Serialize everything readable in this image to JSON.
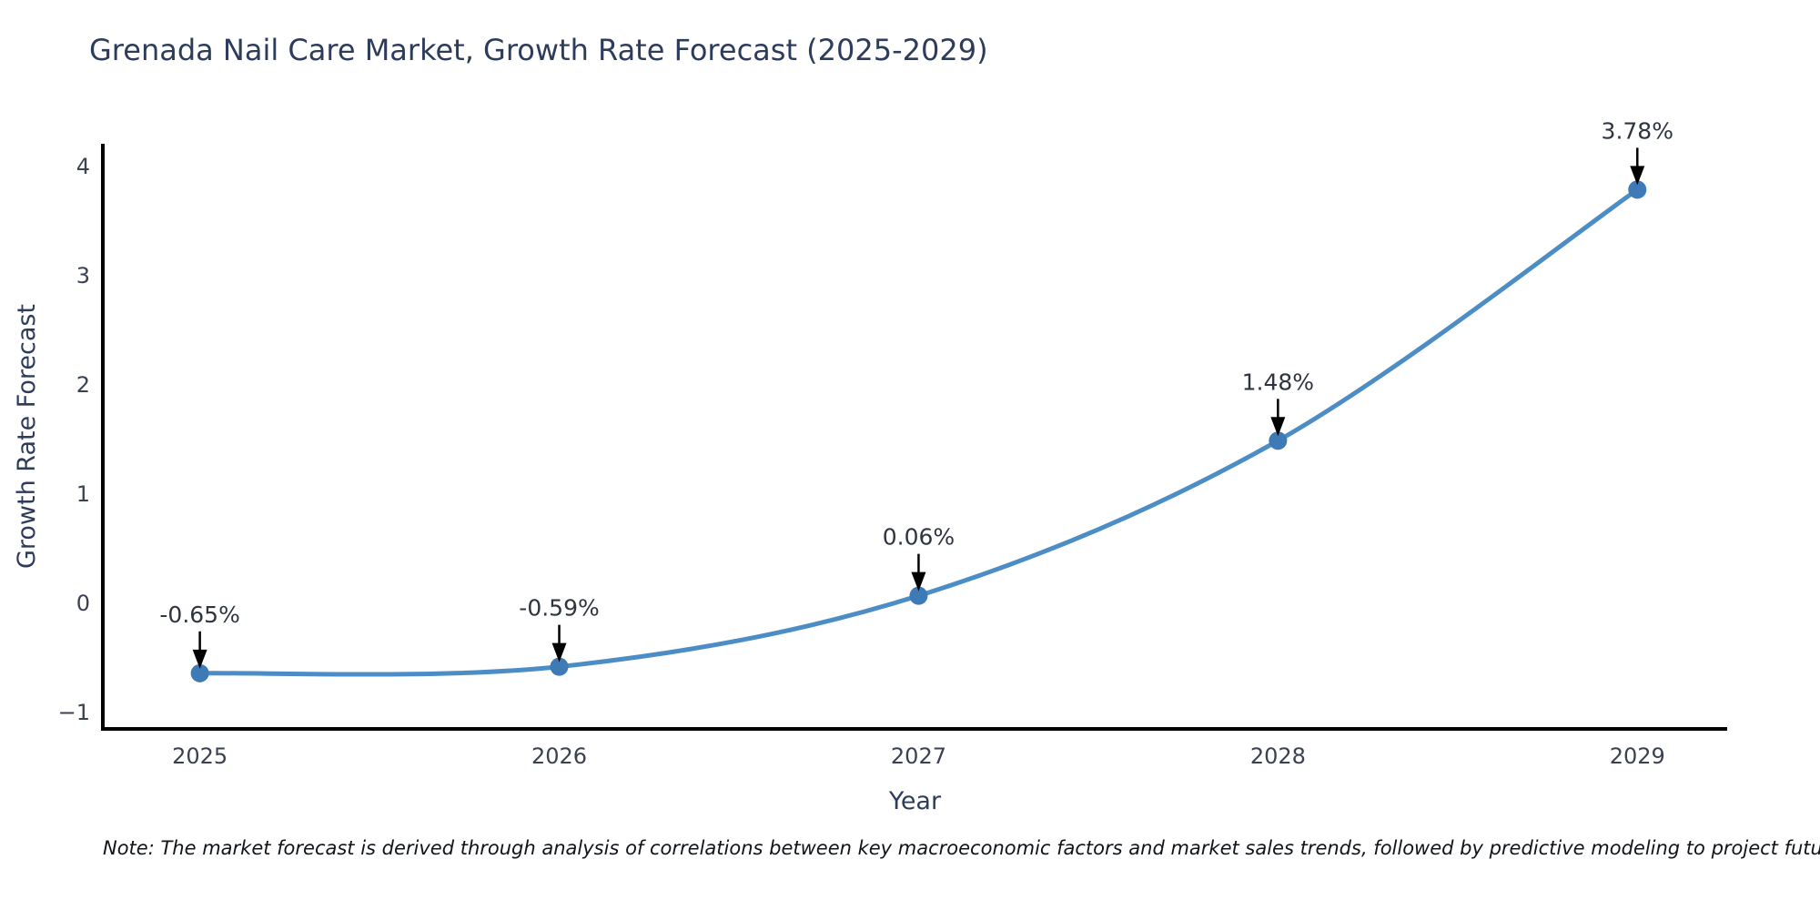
{
  "title": "Grenada Nail Care Market, Growth Rate Forecast (2025-2029)",
  "note": "Note: The market forecast is derived through analysis of correlations between key macroeconomic factors and market sales trends, followed by predictive modeling to project future sales",
  "chart_data": {
    "type": "line",
    "title": "Grenada Nail Care Market, Growth Rate Forecast (2025-2029)",
    "x": [
      2025,
      2026,
      2027,
      2028,
      2029
    ],
    "values": [
      -0.65,
      -0.59,
      0.06,
      1.48,
      3.78
    ],
    "point_labels": [
      "-0.65%",
      "-0.59%",
      "0.06%",
      "1.48%",
      "3.78%"
    ],
    "xlabel": "Year",
    "ylabel": "Growth Rate Forecast",
    "xticks": [
      2025,
      2026,
      2027,
      2028,
      2029
    ],
    "yticks": [
      -1,
      0,
      1,
      2,
      3,
      4
    ],
    "xlim": [
      2024.73,
      2029.25
    ],
    "ylim": [
      -1.16,
      4.2
    ],
    "grid": false,
    "legend": "none",
    "line_color": "#4c8dc6",
    "marker_color": "#3d7ab6",
    "annotation_arrow_color": "#000000",
    "axis_color": "#000000",
    "tick_label_color": "#3a4150",
    "axis_label_color": "#2e3c5c",
    "annotation_text_color": "#2f3540"
  }
}
